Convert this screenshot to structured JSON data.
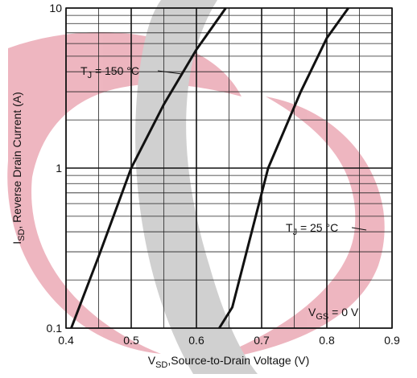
{
  "chart_data": {
    "type": "line",
    "xlabel": {
      "main": "V",
      "sub": "SD",
      "rest": ",Source-to-Drain Voltage (V)"
    },
    "ylabel": {
      "main": "I",
      "sub": "SD",
      "rest": ", Reverse Drain Current (A)"
    },
    "xlim": [
      0.4,
      0.9
    ],
    "xticks": [
      0.4,
      0.5,
      0.6,
      0.7,
      0.8,
      0.9
    ],
    "xminor": [
      0.45,
      0.55,
      0.65,
      0.75,
      0.85
    ],
    "ylim": [
      0.1,
      10
    ],
    "yticks": [
      0.1,
      1,
      10
    ],
    "log_y": true,
    "yminor": [
      0.2,
      0.3,
      0.4,
      0.5,
      0.6,
      0.7,
      0.8,
      0.9,
      2,
      3,
      4,
      5,
      6,
      7,
      8,
      9
    ],
    "grid": true,
    "series": [
      {
        "color": "#111111",
        "x": [
          0.408,
          0.45,
          0.5,
          0.55,
          0.6,
          0.645
        ],
        "values": [
          0.1,
          0.28,
          1,
          2.5,
          5.5,
          10
        ]
      },
      {
        "color": "#111111",
        "x": [
          0.635,
          0.655,
          0.71,
          0.76,
          0.8,
          0.833
        ],
        "values": [
          0.1,
          0.135,
          1,
          3,
          6.5,
          10
        ]
      }
    ],
    "annotations": [
      {
        "main": "T",
        "sub": "J",
        "rest": " = 150 °C"
      },
      {
        "main": "T",
        "sub": "J",
        "rest": " = 25 °C"
      },
      {
        "main": "V",
        "sub": "GS",
        "rest": " = 0 V"
      }
    ]
  }
}
